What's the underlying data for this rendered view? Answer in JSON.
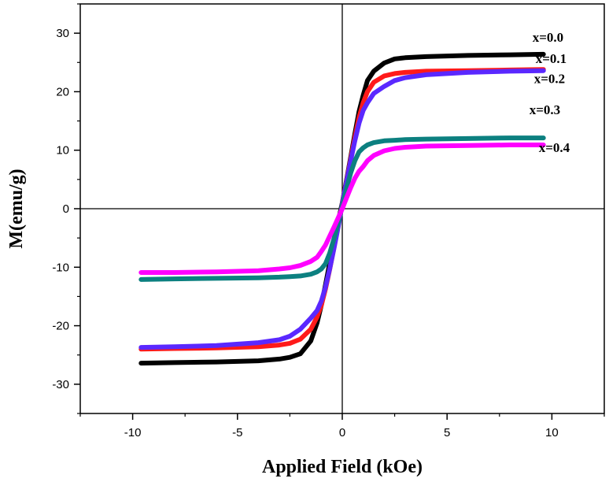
{
  "chart_data": {
    "type": "line",
    "xlabel": "Applied Field (kOe)",
    "ylabel": "M(emu/g)",
    "xlim": [
      -12.5,
      12.5
    ],
    "ylim": [
      -35,
      35
    ],
    "xticks": [
      -10,
      -5,
      0,
      5,
      10
    ],
    "yticks": [
      -30,
      -20,
      -10,
      0,
      10,
      20,
      30
    ],
    "zero_lines": true,
    "grid": false,
    "legend_placement": "inline labels at right end of each curve",
    "x": [
      -9.6,
      -8,
      -6,
      -4,
      -3,
      -2.5,
      -2,
      -1.5,
      -1.2,
      -1,
      -0.8,
      -0.6,
      -0.4,
      -0.2,
      0,
      0.2,
      0.4,
      0.6,
      0.8,
      1,
      1.2,
      1.5,
      2,
      2.5,
      3,
      4,
      6,
      8,
      9.6
    ],
    "series": [
      {
        "name": "x=0.0",
        "color": "#000000",
        "values": [
          -26.4,
          -26.3,
          -26.2,
          -26.0,
          -25.7,
          -25.4,
          -24.8,
          -22.6,
          -19.5,
          -16.5,
          -13.0,
          -9.3,
          -5.6,
          -2.2,
          1.0,
          4.8,
          8.8,
          12.8,
          16.6,
          19.4,
          21.9,
          23.5,
          24.9,
          25.6,
          25.8,
          26.0,
          26.2,
          26.3,
          26.4
        ]
      },
      {
        "name": "x=0.1",
        "color": "#ff1a1a",
        "values": [
          -24.0,
          -23.9,
          -23.8,
          -23.6,
          -23.3,
          -23.0,
          -22.3,
          -20.6,
          -18.5,
          -16.5,
          -13.7,
          -10.4,
          -6.8,
          -3.0,
          0.8,
          4.6,
          8.5,
          12.2,
          15.6,
          18.1,
          20.0,
          21.6,
          22.7,
          23.1,
          23.3,
          23.5,
          23.6,
          23.7,
          23.8
        ]
      },
      {
        "name": "x=0.2",
        "color": "#5a28ff",
        "values": [
          -23.7,
          -23.6,
          -23.4,
          -22.9,
          -22.4,
          -21.8,
          -20.6,
          -18.7,
          -17.4,
          -15.8,
          -13.4,
          -10.3,
          -6.9,
          -3.2,
          0.8,
          4.5,
          8.2,
          11.6,
          14.6,
          16.8,
          18.1,
          19.7,
          20.9,
          21.9,
          22.4,
          22.9,
          23.3,
          23.5,
          23.6
        ]
      },
      {
        "name": "x=0.3",
        "color": "#0c8080",
        "values": [
          -12.1,
          -12.0,
          -11.9,
          -11.8,
          -11.7,
          -11.6,
          -11.5,
          -11.2,
          -10.8,
          -10.3,
          -9.4,
          -7.6,
          -5.2,
          -2.5,
          0.5,
          3.4,
          6.1,
          8.2,
          9.7,
          10.4,
          10.9,
          11.3,
          11.6,
          11.7,
          11.8,
          11.9,
          12.0,
          12.1,
          12.1
        ]
      },
      {
        "name": "x=0.4",
        "color": "#ff00ff",
        "values": [
          -10.9,
          -10.9,
          -10.8,
          -10.6,
          -10.3,
          -10.1,
          -9.7,
          -9.0,
          -8.3,
          -7.3,
          -6.2,
          -4.7,
          -3.2,
          -1.6,
          0.0,
          1.8,
          3.6,
          5.2,
          6.4,
          7.2,
          8.2,
          9.1,
          9.9,
          10.3,
          10.5,
          10.7,
          10.8,
          10.9,
          10.9
        ]
      }
    ]
  }
}
